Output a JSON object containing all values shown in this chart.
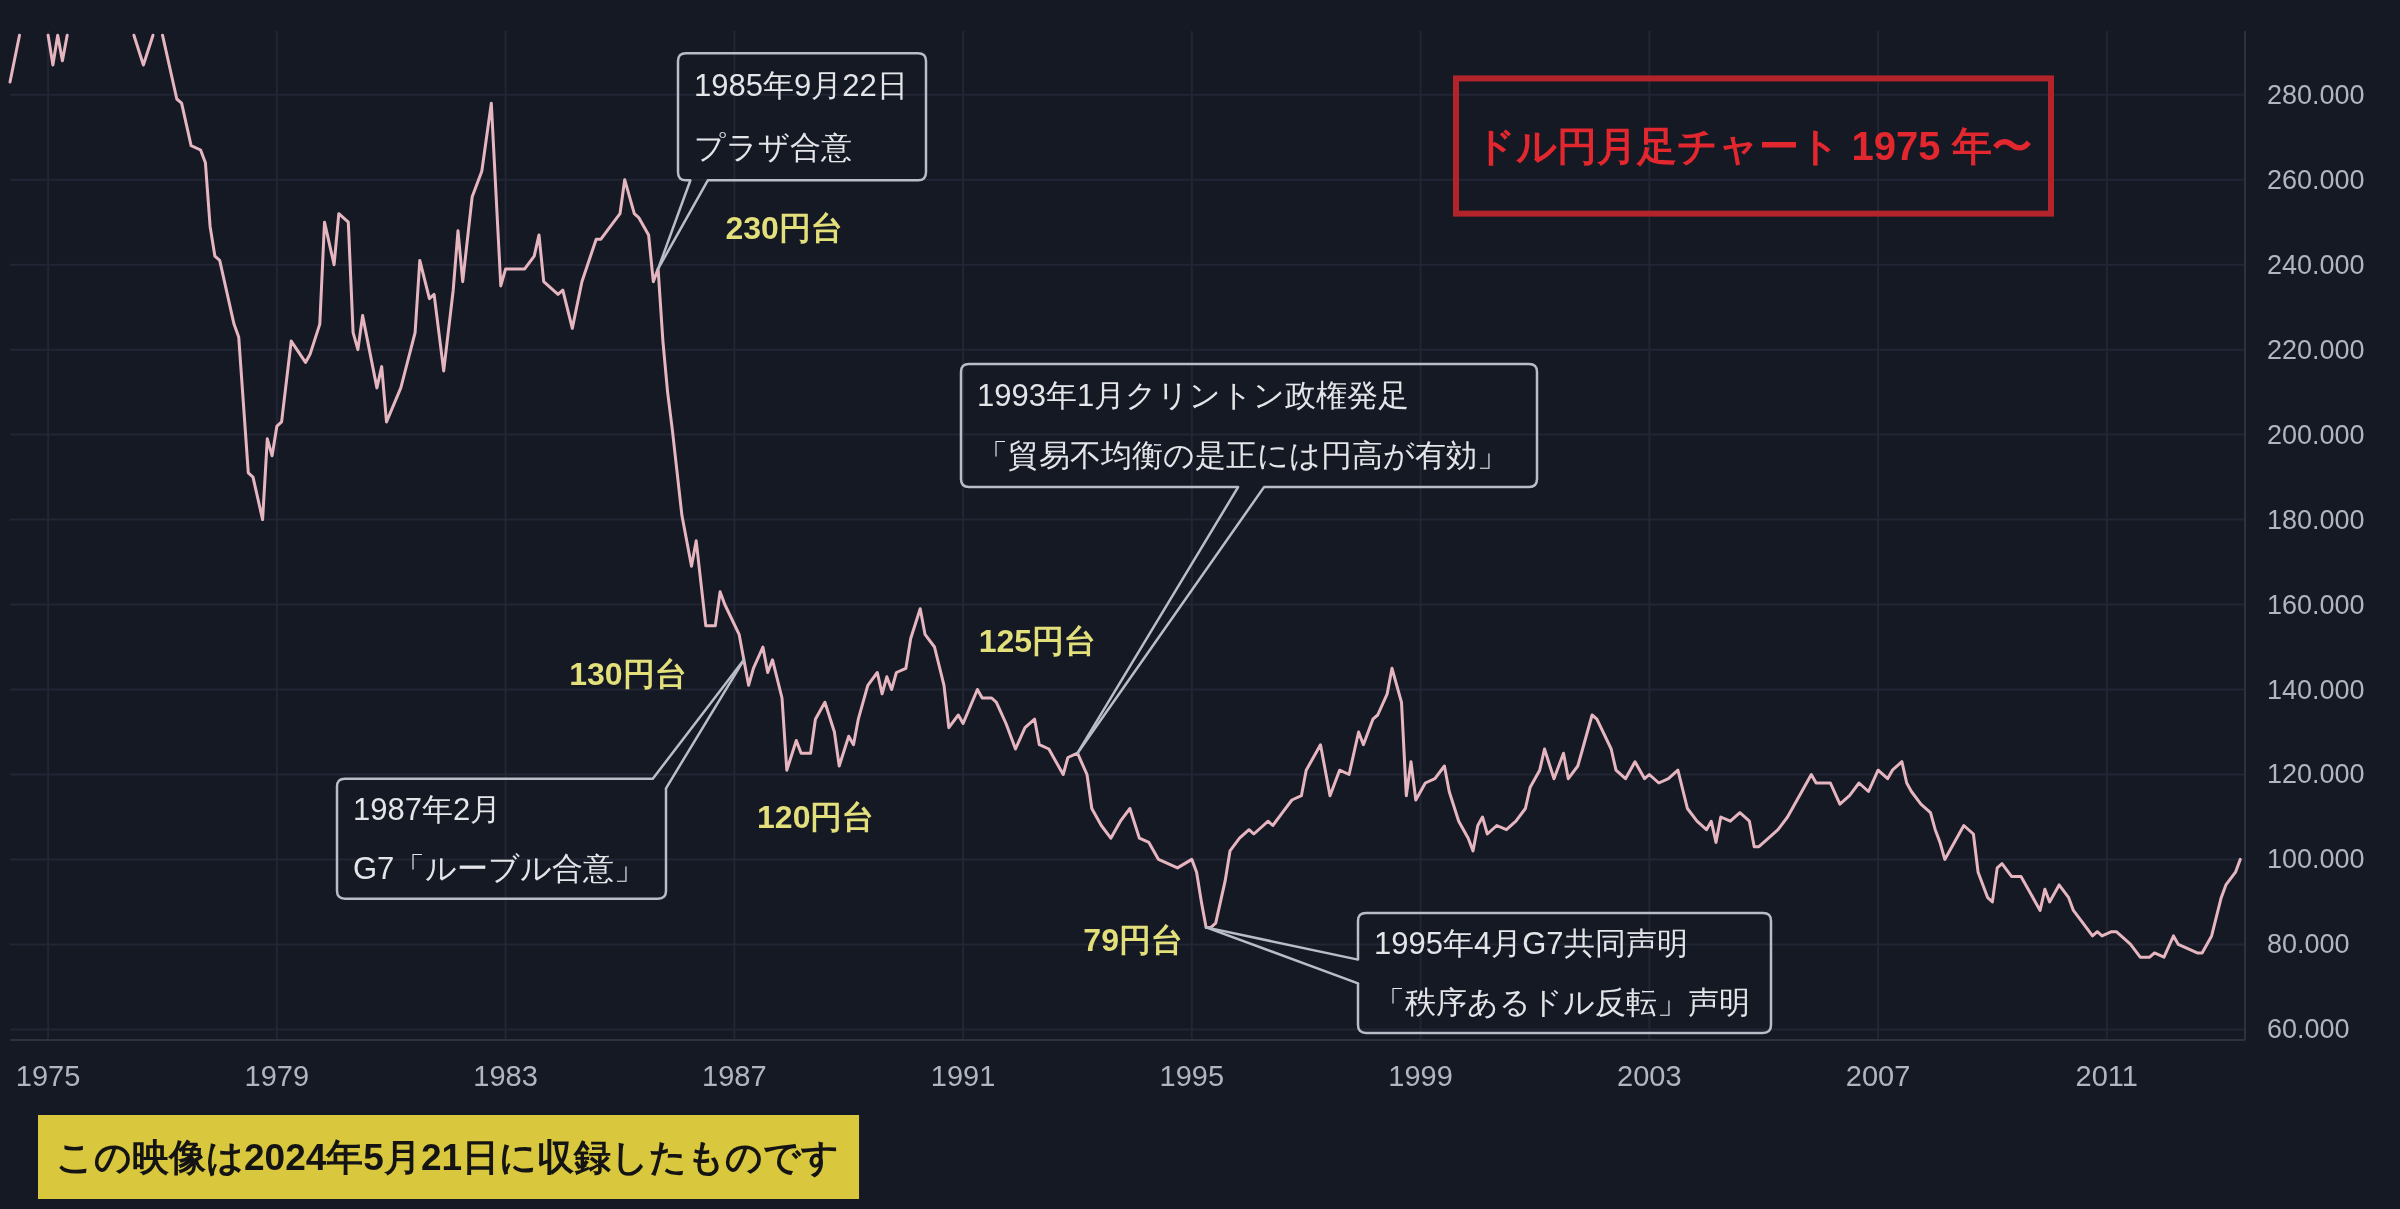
{
  "chart_data": {
    "type": "line",
    "title": "ドル円月足チャート 1975 年〜",
    "series": [
      {
        "color": "#e6b6c0",
        "x": [
          "1974-05",
          "1974-07"
        ],
        "values": [
          283,
          294
        ]
      },
      {
        "color": "#e6b6c0",
        "x": [
          "1975-01",
          "1975-02",
          "1975-03",
          "1975-04",
          "1975-05"
        ],
        "values": [
          294,
          287,
          294,
          288,
          294
        ]
      },
      {
        "color": "#e6b6c0",
        "x": [
          "1976-07",
          "1976-09",
          "1976-11"
        ],
        "values": [
          294,
          287,
          294
        ]
      },
      {
        "color": "#e6b6c0",
        "x": [
          "1977-01",
          "1977-04",
          "1977-05",
          "1977-07",
          "1977-09",
          "1977-10",
          "1977-11",
          "1977-12",
          "1978-01",
          "1978-04",
          "1978-05",
          "1978-07",
          "1978-08",
          "1978-10",
          "1978-11",
          "1978-12",
          "1979-01",
          "1979-02",
          "1979-04",
          "1979-07",
          "1979-08",
          "1979-10",
          "1979-11",
          "1980-01",
          "1980-02",
          "1980-04",
          "1980-05",
          "1980-06",
          "1980-07",
          "1980-10",
          "1980-11",
          "1980-12",
          "1981-03",
          "1981-06",
          "1981-07",
          "1981-09",
          "1981-10",
          "1981-12",
          "1982-02",
          "1982-03",
          "1982-04",
          "1982-06",
          "1982-08",
          "1982-10",
          "1982-12",
          "1983-01",
          "1983-03",
          "1983-05",
          "1983-07",
          "1983-08",
          "1983-09",
          "1983-12",
          "1984-01",
          "1984-03",
          "1984-05",
          "1984-08",
          "1984-09",
          "1984-11",
          "1985-01",
          "1985-02",
          "1985-04",
          "1985-05",
          "1985-07",
          "1985-08",
          "1985-09",
          "1985-10",
          "1985-11",
          "1985-12",
          "1986-02",
          "1986-04",
          "1986-05",
          "1986-07",
          "1986-09",
          "1986-10",
          "1986-11",
          "1987-02",
          "1987-04",
          "1987-05",
          "1987-07",
          "1987-08",
          "1987-09",
          "1987-11",
          "1987-12",
          "1988-02",
          "1988-03",
          "1988-05",
          "1988-06",
          "1988-08",
          "1988-10",
          "1988-11",
          "1989-01",
          "1989-02",
          "1989-03",
          "1989-05",
          "1989-07",
          "1989-08",
          "1989-09",
          "1989-10",
          "1989-11",
          "1990-01",
          "1990-02",
          "1990-04",
          "1990-05",
          "1990-07",
          "1990-09",
          "1990-10",
          "1990-12",
          "1991-01",
          "1991-04",
          "1991-05",
          "1991-07",
          "1991-08",
          "1991-10",
          "1991-12",
          "1992-02",
          "1992-04",
          "1992-05",
          "1992-07",
          "1992-08",
          "1992-10",
          "1992-11",
          "1993-01",
          "1993-03",
          "1993-04",
          "1993-06",
          "1993-08",
          "1993-10",
          "1993-12",
          "1994-02",
          "1994-04",
          "1994-06",
          "1994-08",
          "1994-10",
          "1995-01",
          "1995-02",
          "1995-03",
          "1995-04",
          "1995-05",
          "1995-06",
          "1995-08",
          "1995-09",
          "1995-11",
          "1996-01",
          "1996-02",
          "1996-04",
          "1996-05",
          "1996-06",
          "1996-08",
          "1996-10",
          "1996-12",
          "1997-01",
          "1997-04",
          "1997-06",
          "1997-08",
          "1997-10",
          "1997-12",
          "1998-01",
          "1998-03",
          "1998-04",
          "1998-06",
          "1998-07",
          "1998-09",
          "1998-10",
          "1998-11",
          "1998-12",
          "1999-02",
          "1999-04",
          "1999-06",
          "1999-07",
          "1999-09",
          "1999-11",
          "1999-12",
          "2000-01",
          "2000-02",
          "2000-03",
          "2000-05",
          "2000-07",
          "2000-09",
          "2000-11",
          "2000-12",
          "2001-02",
          "2001-03",
          "2001-05",
          "2001-07",
          "2001-08",
          "2001-10",
          "2001-11",
          "2002-01",
          "2002-02",
          "2002-05",
          "2002-06",
          "2002-08",
          "2002-10",
          "2002-12",
          "2003-01",
          "2003-03",
          "2003-05",
          "2003-07",
          "2003-09",
          "2003-11",
          "2004-01",
          "2004-02",
          "2004-03",
          "2004-04",
          "2004-06",
          "2004-08",
          "2004-10",
          "2004-11",
          "2004-12",
          "2005-02",
          "2005-04",
          "2005-06",
          "2005-07",
          "2005-09",
          "2005-11",
          "2005-12",
          "2006-02",
          "2006-03",
          "2006-05",
          "2006-07",
          "2006-09",
          "2006-11",
          "2007-01",
          "2007-03",
          "2007-04",
          "2007-06",
          "2007-07",
          "2007-08",
          "2007-10",
          "2007-12",
          "2008-01",
          "2008-02",
          "2008-03",
          "2008-05",
          "2008-07",
          "2008-09",
          "2008-10",
          "2008-12",
          "2009-01",
          "2009-02",
          "2009-03",
          "2009-05",
          "2009-07",
          "2009-09",
          "2009-10",
          "2009-11",
          "2009-12",
          "2010-01",
          "2010-03",
          "2010-05",
          "2010-06",
          "2010-08",
          "2010-10",
          "2010-11",
          "2010-12",
          "2011-02",
          "2011-03",
          "2011-05",
          "2011-06",
          "2011-08",
          "2011-10",
          "2011-11",
          "2012-01",
          "2012-03",
          "2012-04",
          "2012-06",
          "2012-08",
          "2012-09",
          "2012-11",
          "2013-01",
          "2013-02",
          "2013-04",
          "2013-05"
        ],
        "values": [
          294,
          279,
          278,
          268,
          267,
          264,
          249,
          242,
          241,
          226,
          223,
          191,
          190,
          180,
          199,
          195,
          202,
          203,
          222,
          217,
          219,
          226,
          250,
          240,
          252,
          250,
          224,
          220,
          228,
          211,
          216,
          203,
          211,
          224,
          241,
          232,
          233,
          215,
          234,
          248,
          236,
          256,
          262,
          278,
          235,
          239,
          239,
          239,
          242,
          247,
          236,
          233,
          234,
          225,
          236,
          246,
          246,
          249,
          252,
          260,
          252,
          251,
          247,
          236,
          239,
          222,
          210,
          201,
          181,
          169,
          175,
          155,
          155,
          163,
          160,
          153,
          141,
          145,
          150,
          144,
          147,
          138,
          121,
          128,
          125,
          125,
          133,
          137,
          130,
          122,
          129,
          127,
          133,
          141,
          144,
          139,
          143,
          140,
          144,
          145,
          152,
          159,
          153,
          150,
          141,
          131,
          134,
          132,
          140,
          138,
          138,
          137,
          132,
          126,
          131,
          133,
          127,
          126,
          124,
          120,
          124,
          125,
          120,
          112,
          108,
          105,
          109,
          112,
          105,
          104,
          100,
          99,
          98,
          100,
          97,
          90,
          84,
          84,
          85,
          95,
          102,
          105,
          107,
          106,
          108,
          109,
          108,
          111,
          114,
          115,
          121,
          127,
          115,
          121,
          120,
          130,
          127,
          133,
          134,
          139,
          145,
          137,
          115,
          123,
          114,
          118,
          119,
          122,
          116,
          109,
          105,
          102,
          108,
          110,
          106,
          108,
          107,
          109,
          112,
          117,
          121,
          126,
          119,
          125,
          119,
          122,
          126,
          134,
          133,
          126,
          121,
          119,
          123,
          119,
          120,
          118,
          119,
          121,
          112,
          109,
          107,
          109,
          104,
          110,
          109,
          111,
          109,
          103,
          103,
          105,
          107,
          110,
          112,
          116,
          120,
          118,
          118,
          118,
          113,
          115,
          118,
          116,
          121,
          119,
          121,
          123,
          118,
          116,
          113,
          111,
          107,
          104,
          100,
          104,
          108,
          106,
          97,
          91,
          90,
          98,
          99,
          96,
          96,
          92,
          90,
          88,
          93,
          90,
          94,
          91,
          88,
          85,
          82,
          83,
          82,
          83,
          83,
          81,
          80,
          77,
          77,
          78,
          77,
          82,
          80,
          79,
          78,
          78,
          82,
          91,
          94,
          97,
          100
        ]
      }
    ],
    "xlim": [
      "1974-05",
      "2013-06"
    ],
    "xticks": [
      "1975",
      "1979",
      "1983",
      "1987",
      "1991",
      "1995",
      "1999",
      "2003",
      "2007",
      "2011"
    ],
    "ylim": [
      57.5,
      295
    ],
    "yticks": [
      {
        "value": 60,
        "label": "60.000"
      },
      {
        "value": 80,
        "label": "80.000"
      },
      {
        "value": 100,
        "label": "100.000"
      },
      {
        "value": 120,
        "label": "120.000"
      },
      {
        "value": 140,
        "label": "140.000"
      },
      {
        "value": 160,
        "label": "160.000"
      },
      {
        "value": 180,
        "label": "180.000"
      },
      {
        "value": 200,
        "label": "200.000"
      },
      {
        "value": 220,
        "label": "220.000"
      },
      {
        "value": 240,
        "label": "240.000"
      },
      {
        "value": 260,
        "label": "260.000"
      },
      {
        "value": 280,
        "label": "280.000"
      }
    ],
    "grid": true,
    "annotations": [
      {
        "text": "1985年9月22日プラザ合意",
        "x": "1985-09",
        "y": 239
      },
      {
        "text": "230円台",
        "x": "1985-09",
        "y": 239
      },
      {
        "text": "130円台",
        "x": "1987-03",
        "y": 147
      },
      {
        "text": "1987年2月G7「ルーブル合意」",
        "x": "1987-03",
        "y": 147
      },
      {
        "text": "120円台",
        "x": "1987-12",
        "y": 121
      },
      {
        "text": "125円台",
        "x": "1993-01",
        "y": 125
      },
      {
        "text": "1993年1月クリントン政権発足「貿易不均衡の是正には円高が有効」",
        "x": "1993-01",
        "y": 125
      },
      {
        "text": "79円台",
        "x": "1995-04",
        "y": 84
      },
      {
        "text": "1995年4月G7共同声明「秩序あるドル反転」声明",
        "x": "1995-04",
        "y": 84
      },
      "この映像は2024年5月21日に収録したものです"
    ]
  }
}
